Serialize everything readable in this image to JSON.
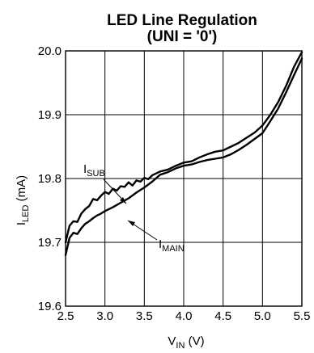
{
  "chart_data": {
    "type": "line",
    "title": "LED Line Regulation",
    "subtitle": "(UNI = '0')",
    "xlabel": {
      "main": "V",
      "sub": "IN",
      "unit": " (V)"
    },
    "ylabel": {
      "main": "I",
      "sub": "LED",
      "unit": " (mA)"
    },
    "xlim": [
      2.5,
      5.5
    ],
    "ylim": [
      19.6,
      20.0
    ],
    "x_ticks": [
      2.5,
      3.0,
      3.5,
      4.0,
      4.5,
      5.0,
      5.5
    ],
    "x_tick_labels": [
      "2.5",
      "3.0",
      "3.5",
      "4.0",
      "4.5",
      "5.0",
      "5.5"
    ],
    "y_ticks": [
      19.6,
      19.7,
      19.8,
      19.9,
      20.0
    ],
    "y_tick_labels": [
      "19.6",
      "19.7",
      "19.8",
      "19.9",
      "20.0"
    ],
    "grid": true,
    "series": [
      {
        "name": "I_SUB",
        "label": {
          "main": "I",
          "sub": "SUB"
        },
        "color": "#000000",
        "x": [
          2.5,
          2.55,
          2.6,
          2.65,
          2.7,
          2.75,
          2.8,
          2.85,
          2.9,
          2.95,
          3.0,
          3.05,
          3.1,
          3.15,
          3.2,
          3.25,
          3.3,
          3.35,
          3.4,
          3.45,
          3.5,
          3.55,
          3.6,
          3.7,
          3.8,
          3.9,
          4.0,
          4.1,
          4.2,
          4.3,
          4.4,
          4.5,
          4.6,
          4.7,
          4.8,
          4.9,
          5.0,
          5.1,
          5.2,
          5.3,
          5.4,
          5.5
        ],
        "values": [
          19.7,
          19.726,
          19.733,
          19.732,
          19.745,
          19.752,
          19.757,
          19.768,
          19.766,
          19.773,
          19.779,
          19.776,
          19.784,
          19.781,
          19.788,
          19.787,
          19.794,
          19.789,
          19.797,
          19.795,
          19.801,
          19.799,
          19.805,
          19.811,
          19.814,
          19.82,
          19.825,
          19.827,
          19.833,
          19.838,
          19.842,
          19.844,
          19.85,
          19.856,
          19.864,
          19.872,
          19.883,
          19.9,
          19.92,
          19.945,
          19.975,
          19.998
        ]
      },
      {
        "name": "I_MAIN",
        "label": {
          "main": "I",
          "sub": "MAIN"
        },
        "color": "#000000",
        "x": [
          2.5,
          2.55,
          2.6,
          2.65,
          2.7,
          2.75,
          2.8,
          2.85,
          2.9,
          2.95,
          3.0,
          3.1,
          3.2,
          3.3,
          3.4,
          3.5,
          3.6,
          3.7,
          3.8,
          3.9,
          4.0,
          4.1,
          4.2,
          4.3,
          4.4,
          4.5,
          4.6,
          4.7,
          4.8,
          4.9,
          5.0,
          5.1,
          5.2,
          5.3,
          5.4,
          5.5
        ],
        "values": [
          19.68,
          19.707,
          19.715,
          19.713,
          19.722,
          19.729,
          19.733,
          19.738,
          19.742,
          19.745,
          19.749,
          19.755,
          19.762,
          19.769,
          19.778,
          19.786,
          19.795,
          19.806,
          19.81,
          19.816,
          19.82,
          19.822,
          19.826,
          19.829,
          19.831,
          19.833,
          19.838,
          19.845,
          19.853,
          19.862,
          19.871,
          19.89,
          19.91,
          19.935,
          19.962,
          19.988
        ]
      }
    ]
  }
}
